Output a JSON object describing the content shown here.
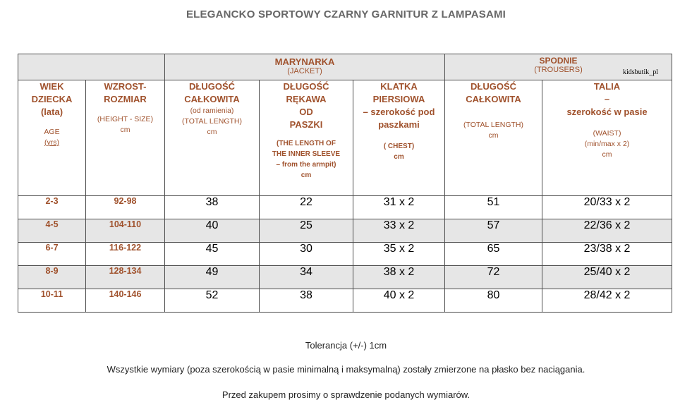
{
  "title": "ELEGANCKO SPORTOWY CZARNY GARNITUR Z LAMPASAMI",
  "watermark": "kidsbutik_pl",
  "groups": {
    "jacket": {
      "label": "MARYNARKA",
      "sub": "(JACKET)"
    },
    "trousers": {
      "label": "SPODNIE",
      "sub": "(TROUSERS)"
    }
  },
  "headers": {
    "age": {
      "l1": "WIEK",
      "l2": "DZIECKA",
      "l3": "(lata)",
      "en1": "AGE",
      "en2": "(yrs)"
    },
    "height": {
      "l1": "WZROST-",
      "l2": "ROZMIAR",
      "en1": "(HEIGHT - SIZE)",
      "en2": "cm"
    },
    "jacket_length": {
      "l1": "DŁUGOŚĆ",
      "l2": "CAŁKOWITA",
      "s1": "(od ramienia)",
      "s2": "(TOTAL LENGTH)",
      "s3": "cm"
    },
    "sleeve": {
      "l1": "DŁUGOŚĆ",
      "l2": "RĘKAWA",
      "l3": "OD",
      "l4": "PASZKI",
      "s1": "(THE LENGTH OF",
      "s2": "THE INNER SLEEVE",
      "s3": "– from the armpit)",
      "s4": "cm"
    },
    "chest": {
      "l1": "KLATKA",
      "l2": "PIERSIOWA",
      "l3": "– szerokość pod",
      "l4": "paszkami",
      "s1": "( CHEST)",
      "s2": "cm"
    },
    "trousers_length": {
      "l1": "DŁUGOŚĆ",
      "l2": "CAŁKOWITA",
      "s1": "(TOTAL LENGTH)",
      "s2": "cm"
    },
    "waist": {
      "l1": "TALIA",
      "l2": "–",
      "l3": "szerokość w pasie",
      "s1": "(WAIST)",
      "s2": "(min/max x 2)",
      "s3": "cm"
    }
  },
  "rows": [
    {
      "age": "2-3",
      "height": "92-98",
      "jacket_length": "38",
      "sleeve": "22",
      "chest": "31 x 2",
      "trousers_length": "51",
      "waist": "20/33 x 2"
    },
    {
      "age": "4-5",
      "height": "104-110",
      "jacket_length": "40",
      "sleeve": "25",
      "chest": "33 x 2",
      "trousers_length": "57",
      "waist": "22/36 x 2"
    },
    {
      "age": "6-7",
      "height": "116-122",
      "jacket_length": "45",
      "sleeve": "30",
      "chest": "35 x 2",
      "trousers_length": "65",
      "waist": "23/38 x 2"
    },
    {
      "age": "8-9",
      "height": "128-134",
      "jacket_length": "49",
      "sleeve": "34",
      "chest": "38 x 2",
      "trousers_length": "72",
      "waist": "25/40 x 2"
    },
    {
      "age": "10-11",
      "height": "140-146",
      "jacket_length": "52",
      "sleeve": "38",
      "chest": "40 x 2",
      "trousers_length": "80",
      "waist": "28/42 x 2"
    }
  ],
  "footer": {
    "tolerance": "Tolerancja (+/-) 1cm",
    "note": "Wszystkie wymiary (poza szerokością w pasie minimalną i maksymalną) zostały zmierzone na płasko bez naciągania.",
    "request": "Przed zakupem prosimy o sprawdzenie podanych  wymiarów."
  }
}
